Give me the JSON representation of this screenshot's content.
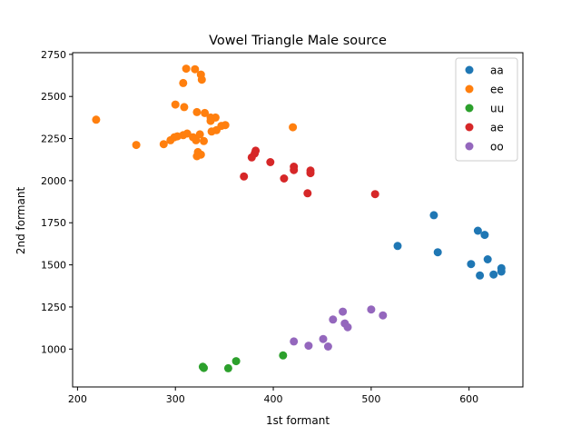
{
  "chart_data": {
    "type": "scatter",
    "title": "Vowel Triangle Male source",
    "xlabel": "1st formant",
    "ylabel": "2nd formant",
    "xlim": [
      195,
      655
    ],
    "ylim": [
      775,
      2760
    ],
    "xticks": [
      200,
      300,
      400,
      500,
      600
    ],
    "yticks": [
      1000,
      1250,
      1500,
      1750,
      2000,
      2250,
      2500,
      2750
    ],
    "grid": false,
    "legend_position": "top-right",
    "series": [
      {
        "name": "aa",
        "color": "#1f77b4",
        "points": [
          [
            564,
            1795
          ],
          [
            609,
            1703
          ],
          [
            616,
            1678
          ],
          [
            527,
            1612
          ],
          [
            568,
            1575
          ],
          [
            619,
            1533
          ],
          [
            602,
            1505
          ],
          [
            633,
            1480
          ],
          [
            633,
            1460
          ],
          [
            625,
            1443
          ],
          [
            611,
            1437
          ]
        ]
      },
      {
        "name": "ee",
        "color": "#ff7f0e",
        "points": [
          [
            311,
            2665
          ],
          [
            320,
            2662
          ],
          [
            326,
            2630
          ],
          [
            327,
            2600
          ],
          [
            308,
            2580
          ],
          [
            300,
            2452
          ],
          [
            309,
            2437
          ],
          [
            219,
            2362
          ],
          [
            322,
            2407
          ],
          [
            330,
            2402
          ],
          [
            336,
            2375
          ],
          [
            341,
            2375
          ],
          [
            336,
            2355
          ],
          [
            347,
            2325
          ],
          [
            351,
            2330
          ],
          [
            420,
            2317
          ],
          [
            342,
            2300
          ],
          [
            337,
            2292
          ],
          [
            312,
            2280
          ],
          [
            325,
            2275
          ],
          [
            308,
            2270
          ],
          [
            302,
            2263
          ],
          [
            299,
            2258
          ],
          [
            318,
            2258
          ],
          [
            295,
            2240
          ],
          [
            321,
            2240
          ],
          [
            329,
            2235
          ],
          [
            260,
            2212
          ],
          [
            288,
            2217
          ],
          [
            323,
            2170
          ],
          [
            326,
            2155
          ],
          [
            322,
            2145
          ]
        ]
      },
      {
        "name": "uu",
        "color": "#2ca02c",
        "points": [
          [
            362,
            928
          ],
          [
            410,
            962
          ],
          [
            328,
            895
          ],
          [
            329,
            888
          ],
          [
            354,
            886
          ]
        ]
      },
      {
        "name": "ae",
        "color": "#d62728",
        "points": [
          [
            382,
            2178
          ],
          [
            381,
            2162
          ],
          [
            378,
            2138
          ],
          [
            397,
            2110
          ],
          [
            421,
            2083
          ],
          [
            421,
            2063
          ],
          [
            438,
            2060
          ],
          [
            438,
            2045
          ],
          [
            370,
            2025
          ],
          [
            411,
            2013
          ],
          [
            435,
            1925
          ],
          [
            504,
            1920
          ]
        ]
      },
      {
        "name": "oo",
        "color": "#9467bd",
        "points": [
          [
            500,
            1235
          ],
          [
            471,
            1222
          ],
          [
            512,
            1200
          ],
          [
            461,
            1175
          ],
          [
            473,
            1152
          ],
          [
            476,
            1130
          ],
          [
            451,
            1060
          ],
          [
            421,
            1045
          ],
          [
            436,
            1020
          ],
          [
            456,
            1015
          ]
        ]
      }
    ]
  }
}
